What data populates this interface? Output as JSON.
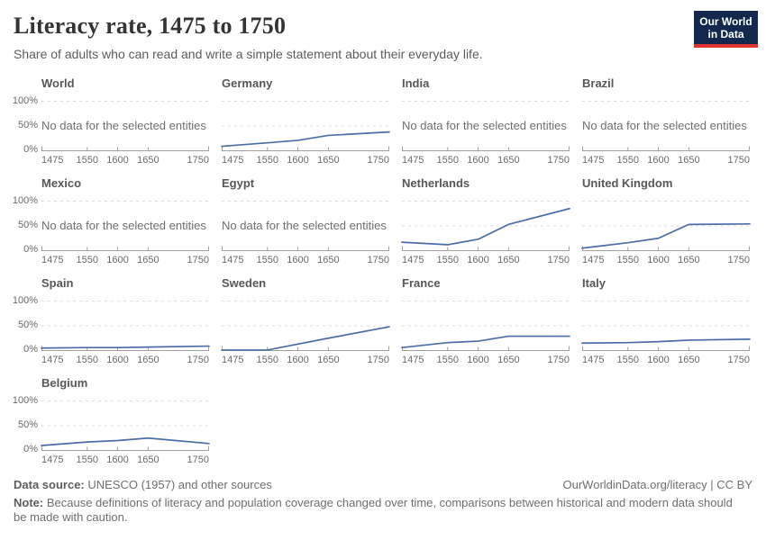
{
  "header": {
    "title": "Literacy rate, 1475 to 1750",
    "subtitle": "Share of adults who can read and write a simple statement about their everyday life.",
    "logo": {
      "line1": "Our World",
      "line2": "in Data",
      "bg_color": "#12294d",
      "accent_color": "#e0342c"
    }
  },
  "chart_data": {
    "type": "line",
    "title": "Literacy rate, 1475 to 1750",
    "ylabel": "",
    "xlabel": "",
    "x": [
      1475,
      1550,
      1600,
      1650,
      1750
    ],
    "x_tick_labels": [
      "1475",
      "1550",
      "1600",
      "1650",
      "1750"
    ],
    "y_tick_labels": [
      "100%",
      "50%",
      "0%"
    ],
    "xlim": [
      1475,
      1750
    ],
    "ylim": [
      0,
      100
    ],
    "grid": "dashed horizontal gridlines at 50% and 100%",
    "legend_position": "none (small multiples, one panel per entity)",
    "line_color": "#4a6da7",
    "no_data_text": "No data for the selected entities",
    "panels": [
      {
        "title": "World",
        "no_data": true
      },
      {
        "title": "Germany",
        "values": [
          9,
          16,
          21,
          31,
          38
        ]
      },
      {
        "title": "India",
        "no_data": true
      },
      {
        "title": "Brazil",
        "no_data": true
      },
      {
        "title": "Mexico",
        "no_data": true
      },
      {
        "title": "Egypt",
        "no_data": true
      },
      {
        "title": "Netherlands",
        "values": [
          17,
          12,
          23,
          53,
          85
        ]
      },
      {
        "title": "United Kingdom",
        "values": [
          5,
          16,
          25,
          53,
          54
        ]
      },
      {
        "title": "Spain",
        "values": [
          5,
          6,
          6,
          7,
          9
        ]
      },
      {
        "title": "Sweden",
        "values": [
          1,
          1,
          13,
          25,
          48
        ]
      },
      {
        "title": "France",
        "values": [
          6,
          16,
          19,
          29,
          29
        ]
      },
      {
        "title": "Italy",
        "values": [
          15,
          16,
          18,
          21,
          23
        ]
      },
      {
        "title": "Belgium",
        "values": [
          10,
          17,
          20,
          25,
          14
        ]
      }
    ]
  },
  "footer": {
    "datasource_label": "Data source:",
    "datasource_value": " UNESCO (1957) and other sources",
    "attribution": "OurWorldinData.org/literacy | CC BY",
    "note_label": "Note:",
    "note_value": " Because definitions of literacy and population coverage changed over time, comparisons between historical and modern data should be made with caution."
  }
}
